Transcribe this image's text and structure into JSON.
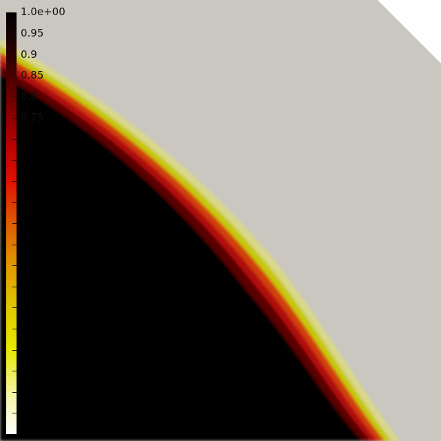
{
  "colorbar": {
    "max_label": "1.0e+00",
    "labels": [
      "0.95",
      "0.9",
      "0.85",
      "0.8",
      "0.75"
    ],
    "colormap": [
      "#000000",
      "#2a0000",
      "#6a0000",
      "#b00000",
      "#e01000",
      "#e05a00",
      "#e09a00",
      "#e0c800",
      "#e8e800",
      "#f4f4a0",
      "#ffffff"
    ]
  },
  "field": {
    "background_color": "#c9c7c0",
    "front_colors": [
      "#000000",
      "#5a0000",
      "#b10f0f",
      "#d24010",
      "#c6c80a",
      "#d9d88a"
    ]
  }
}
